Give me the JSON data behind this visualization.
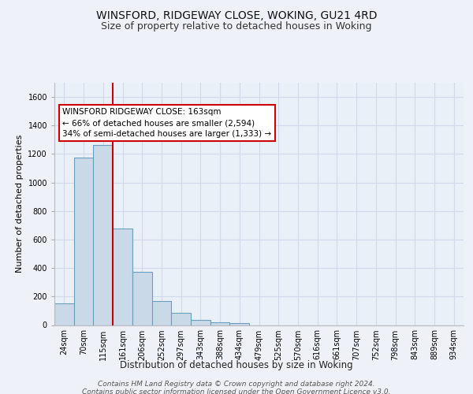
{
  "title": "WINSFORD, RIDGEWAY CLOSE, WOKING, GU21 4RD",
  "subtitle": "Size of property relative to detached houses in Woking",
  "xlabel": "Distribution of detached houses by size in Woking",
  "ylabel": "Number of detached properties",
  "categories": [
    "24sqm",
    "70sqm",
    "115sqm",
    "161sqm",
    "206sqm",
    "252sqm",
    "297sqm",
    "343sqm",
    "388sqm",
    "434sqm",
    "479sqm",
    "525sqm",
    "570sqm",
    "616sqm",
    "661sqm",
    "707sqm",
    "752sqm",
    "798sqm",
    "843sqm",
    "889sqm",
    "934sqm"
  ],
  "values": [
    150,
    1175,
    1265,
    680,
    375,
    170,
    85,
    38,
    22,
    14,
    0,
    0,
    0,
    0,
    0,
    0,
    0,
    0,
    0,
    0,
    0
  ],
  "bar_color": "#c9d9e8",
  "bar_edge_color": "#6b9fc0",
  "vline_x_index": 3,
  "vline_color": "#cc0000",
  "annotation_text": "WINSFORD RIDGEWAY CLOSE: 163sqm\n← 66% of detached houses are smaller (2,594)\n34% of semi-detached houses are larger (1,333) →",
  "annotation_box_color": "#ffffff",
  "annotation_box_edge": "#cc0000",
  "ylim": [
    0,
    1700
  ],
  "yticks": [
    0,
    200,
    400,
    600,
    800,
    1000,
    1200,
    1400,
    1600
  ],
  "footer_line1": "Contains HM Land Registry data © Crown copyright and database right 2024.",
  "footer_line2": "Contains public sector information licensed under the Open Government Licence v3.0.",
  "background_color": "#eef2f8",
  "plot_background": "#eaf0f8",
  "grid_color": "#d0daea",
  "title_fontsize": 10,
  "subtitle_fontsize": 9,
  "xlabel_fontsize": 8.5,
  "ylabel_fontsize": 8,
  "tick_fontsize": 7,
  "footer_fontsize": 6.5,
  "annot_fontsize": 7.5
}
